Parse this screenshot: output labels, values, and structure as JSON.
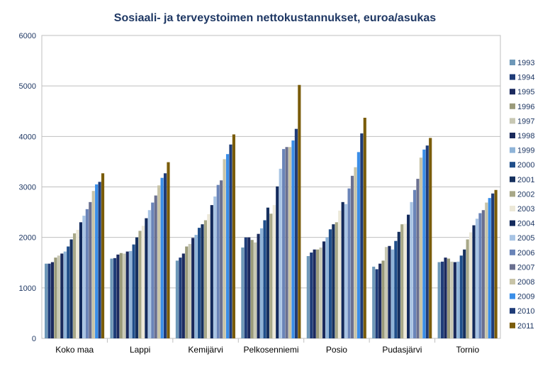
{
  "chart_data": {
    "type": "bar",
    "title": "Sosiaali- ja terveystoimen nettokustannukset, euroa/asukas",
    "xlabel": "",
    "ylabel": "",
    "ylim": [
      0,
      6000
    ],
    "yticks": [
      0,
      1000,
      2000,
      3000,
      4000,
      5000,
      6000
    ],
    "grid": "horizontal",
    "legend_position": "right",
    "categories": [
      "Koko maa",
      "Lappi",
      "Kemijärvi",
      "Pelkosenniemi",
      "Posio",
      "Pudasjärvi",
      "Tornio"
    ],
    "series": [
      {
        "name": "1993",
        "color": "#6e98b8",
        "values": [
          1480,
          1580,
          1540,
          1800,
          1630,
          1420,
          1510
        ]
      },
      {
        "name": "1994",
        "color": "#1f3c78",
        "values": [
          1480,
          1590,
          1600,
          2000,
          1700,
          1370,
          1520
        ]
      },
      {
        "name": "1995",
        "color": "#1c2a5e",
        "values": [
          1510,
          1660,
          1680,
          2000,
          1760,
          1480,
          1600
        ]
      },
      {
        "name": "1996",
        "color": "#9a9a7a",
        "values": [
          1600,
          1690,
          1820,
          1950,
          1760,
          1540,
          1580
        ]
      },
      {
        "name": "1997",
        "color": "#c8c8b4",
        "values": [
          1640,
          1680,
          1870,
          1900,
          1800,
          1810,
          1520
        ]
      },
      {
        "name": "1998",
        "color": "#1a2a5c",
        "values": [
          1680,
          1720,
          1990,
          2070,
          1920,
          1830,
          1510
        ]
      },
      {
        "name": "1999",
        "color": "#8fb4d8",
        "values": [
          1720,
          1730,
          2050,
          2180,
          2000,
          1760,
          1520
        ]
      },
      {
        "name": "2000",
        "color": "#1f4e8a",
        "values": [
          1820,
          1860,
          2190,
          2340,
          2160,
          1930,
          1640
        ]
      },
      {
        "name": "2001",
        "color": "#16305e",
        "values": [
          1960,
          2000,
          2260,
          2590,
          2260,
          2110,
          1760
        ]
      },
      {
        "name": "2002",
        "color": "#a8a888",
        "values": [
          2080,
          2130,
          2340,
          2470,
          2300,
          2260,
          1960
        ]
      },
      {
        "name": "2003",
        "color": "#ece8d8",
        "values": [
          2150,
          2230,
          2460,
          2640,
          2530,
          2270,
          2100
        ]
      },
      {
        "name": "2004",
        "color": "#132a5c",
        "values": [
          2300,
          2380,
          2640,
          3010,
          2700,
          2450,
          2240
        ]
      },
      {
        "name": "2005",
        "color": "#a8c4e4",
        "values": [
          2430,
          2540,
          2810,
          3360,
          2660,
          2700,
          2370
        ]
      },
      {
        "name": "2006",
        "color": "#6a84b8",
        "values": [
          2560,
          2690,
          3040,
          3750,
          2970,
          2940,
          2480
        ]
      },
      {
        "name": "2007",
        "color": "#6a7090",
        "values": [
          2700,
          2830,
          3130,
          3790,
          3220,
          3160,
          2540
        ]
      },
      {
        "name": "2008",
        "color": "#c8c4a8",
        "values": [
          2920,
          3030,
          3550,
          3790,
          3390,
          3580,
          2690
        ]
      },
      {
        "name": "2009",
        "color": "#3a8ee8",
        "values": [
          3050,
          3180,
          3650,
          3920,
          3690,
          3740,
          2780
        ]
      },
      {
        "name": "2010",
        "color": "#1f3c78",
        "values": [
          3100,
          3270,
          3840,
          4150,
          4060,
          3820,
          2870
        ]
      },
      {
        "name": "2011",
        "color": "#7a5c0a",
        "values": [
          3270,
          3490,
          4040,
          5020,
          4370,
          3970,
          2940
        ]
      }
    ]
  }
}
